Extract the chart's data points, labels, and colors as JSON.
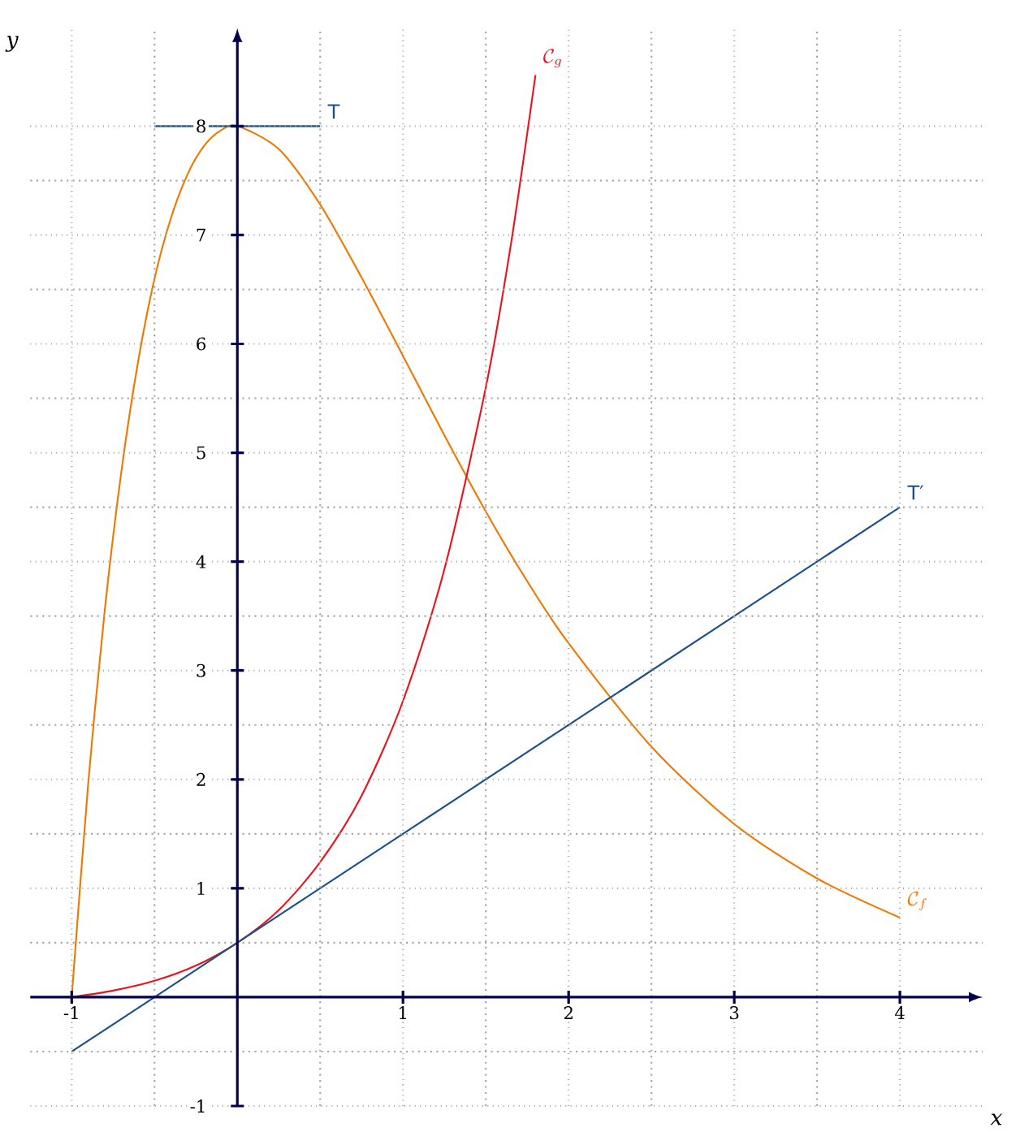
{
  "chart_data": {
    "type": "line",
    "xlabel": "x",
    "ylabel": "y",
    "xlim": [
      -1.25,
      4.5
    ],
    "ylim": [
      -1,
      8.9
    ],
    "xticks": [
      -1,
      {
        "value": 0,
        "label": null
      },
      1,
      2,
      3,
      4
    ],
    "yticks": [
      -1,
      {
        "value": 0,
        "label": null
      },
      1,
      2,
      3,
      4,
      5,
      6,
      7,
      8
    ],
    "grid": true,
    "marker": "none",
    "line_style": "solid",
    "series": [
      {
        "name": "\\mathcal{C}_f",
        "color": "#f07800",
        "x": [
          -1,
          -0.9,
          -0.8,
          -0.7,
          -0.6,
          -0.5,
          -0.4,
          -0.3,
          -0.2,
          -0.1,
          0,
          0.25,
          0.5,
          0.75,
          1,
          1.25,
          1.5,
          1.75,
          2,
          2.5,
          3,
          3.5,
          4
        ],
        "values": [
          0,
          1.97,
          3.56,
          4.83,
          5.83,
          6.6,
          7.16,
          7.56,
          7.82,
          7.96,
          8,
          7.79,
          7.28,
          6.61,
          5.89,
          5.16,
          4.46,
          3.82,
          3.25,
          2.3,
          1.59,
          1.09,
          0.73
        ]
      },
      {
        "name": "\\mathcal{C}_g",
        "color": "#e8141e",
        "x": [
          -1,
          -0.75,
          -0.5,
          -0.25,
          0,
          0.25,
          0.5,
          0.75,
          1,
          1.25,
          1.5,
          1.65,
          1.8
        ],
        "values": [
          0,
          0.06,
          0.15,
          0.29,
          0.5,
          0.8,
          1.24,
          1.85,
          2.72,
          3.93,
          5.6,
          6.9,
          8.47
        ]
      },
      {
        "name": "T′",
        "color": "#1a4f8a",
        "x": [
          -1,
          4
        ],
        "values": [
          -0.5,
          4.5
        ]
      },
      {
        "name": "T",
        "color": "#1a4f8a",
        "x": [
          -0.5,
          0.5
        ],
        "values": [
          8,
          8
        ]
      }
    ]
  }
}
